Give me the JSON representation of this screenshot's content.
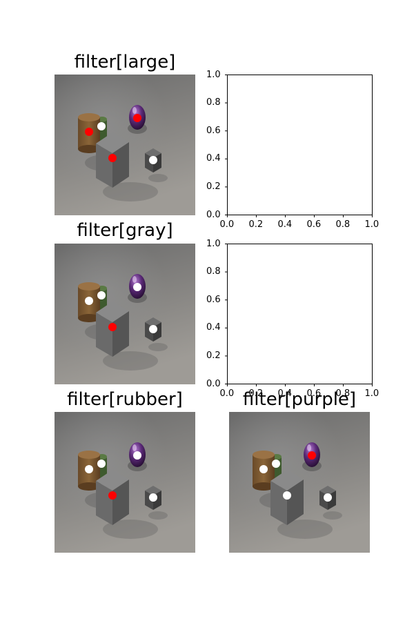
{
  "titles": {
    "p1": "filter[large]",
    "p2": "filter[gray]",
    "p3": "filter[rubber]",
    "p4": "filter[purple]"
  },
  "empty_axes_ticks": [
    "0.0",
    "0.2",
    "0.4",
    "0.6",
    "0.8",
    "1.0"
  ],
  "colors": {
    "selected": "#ff0000",
    "unselected": "#ffffff",
    "background_top": "#6a6a6a",
    "background_bottom": "#9e9b96"
  },
  "panels": [
    {
      "id": "p1",
      "markers": [
        "red",
        "white",
        "red",
        "red",
        "white"
      ]
    },
    {
      "id": "p2",
      "markers": [
        "white",
        "white",
        "white",
        "red",
        "white"
      ]
    },
    {
      "id": "p3",
      "markers": [
        "white",
        "white",
        "white",
        "red",
        "white"
      ]
    },
    {
      "id": "p4",
      "markers": [
        "white",
        "white",
        "red",
        "white",
        "white"
      ]
    }
  ]
}
